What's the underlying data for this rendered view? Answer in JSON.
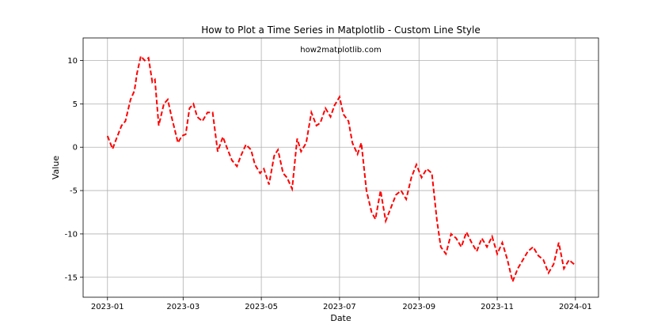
{
  "chart_data": {
    "type": "line",
    "title": "How to Plot a Time Series in Matplotlib - Custom Line Style",
    "xlabel": "Date",
    "ylabel": "Value",
    "annotation": "how2matplotlib.com",
    "x_ticks": [
      "2023-01",
      "2023-03",
      "2023-05",
      "2023-07",
      "2023-09",
      "2023-11",
      "2024-01"
    ],
    "y_ticks": [
      10,
      5,
      0,
      -5,
      -10,
      -15
    ],
    "y_tick_labels": [
      "10",
      "5",
      "0",
      "-5",
      "-10",
      "-15"
    ],
    "xlim": [
      "2022-12-13",
      "2024-01-19"
    ],
    "ylim": [
      -17.3,
      12.6
    ],
    "grid": true,
    "line_color": "#ff0000",
    "line_style": "dashed",
    "series": [
      {
        "x": [
          "2023-01-01",
          "2023-01-05",
          "2023-01-08",
          "2023-01-12",
          "2023-01-15",
          "2023-01-19",
          "2023-01-22",
          "2023-01-24",
          "2023-01-27",
          "2023-01-30",
          "2023-02-02",
          "2023-02-05",
          "2023-02-07",
          "2023-02-10",
          "2023-02-14",
          "2023-02-17",
          "2023-02-20",
          "2023-02-22",
          "2023-02-25",
          "2023-02-28",
          "2023-03-03",
          "2023-03-06",
          "2023-03-09",
          "2023-03-12",
          "2023-03-16",
          "2023-03-20",
          "2023-03-24",
          "2023-03-28",
          "2023-04-01",
          "2023-04-04",
          "2023-04-08",
          "2023-04-12",
          "2023-04-15",
          "2023-04-19",
          "2023-04-23",
          "2023-04-26",
          "2023-04-30",
          "2023-05-03",
          "2023-05-07",
          "2023-05-11",
          "2023-05-14",
          "2023-05-18",
          "2023-05-21",
          "2023-05-25",
          "2023-05-29",
          "2023-06-01",
          "2023-06-05",
          "2023-06-09",
          "2023-06-13",
          "2023-06-16",
          "2023-06-20",
          "2023-06-24",
          "2023-06-27",
          "2023-07-01",
          "2023-07-04",
          "2023-07-08",
          "2023-07-11",
          "2023-07-15",
          "2023-07-18",
          "2023-07-22",
          "2023-07-26",
          "2023-07-29",
          "2023-08-02",
          "2023-08-06",
          "2023-08-10",
          "2023-08-14",
          "2023-08-18",
          "2023-08-22",
          "2023-08-26",
          "2023-08-30",
          "2023-09-03",
          "2023-09-07",
          "2023-09-11",
          "2023-09-15",
          "2023-09-18",
          "2023-09-22",
          "2023-09-26",
          "2023-09-30",
          "2023-10-04",
          "2023-10-08",
          "2023-10-12",
          "2023-10-16",
          "2023-10-20",
          "2023-10-24",
          "2023-10-28",
          "2023-11-01",
          "2023-11-05",
          "2023-11-09",
          "2023-11-13",
          "2023-11-17",
          "2023-11-21",
          "2023-11-25",
          "2023-11-29",
          "2023-12-03",
          "2023-12-07",
          "2023-12-11",
          "2023-12-15",
          "2023-12-19",
          "2023-12-23",
          "2023-12-27",
          "2023-12-31"
        ],
        "y": [
          1.3,
          -0.2,
          1.0,
          2.5,
          3.0,
          5.5,
          6.5,
          8.5,
          10.5,
          10.0,
          10.3,
          7.5,
          7.8,
          2.5,
          5.0,
          5.5,
          3.5,
          2.3,
          0.5,
          1.3,
          1.5,
          4.5,
          5.0,
          3.5,
          3.0,
          4.0,
          4.0,
          -0.5,
          1.2,
          0.0,
          -1.5,
          -2.2,
          -1.0,
          0.3,
          -0.3,
          -2.0,
          -3.0,
          -2.5,
          -4.3,
          -1.0,
          -0.3,
          -3.0,
          -3.5,
          -4.8,
          1.0,
          -0.5,
          0.5,
          4.0,
          2.5,
          2.8,
          4.5,
          3.5,
          4.8,
          5.8,
          3.8,
          3.0,
          0.5,
          -0.8,
          0.5,
          -5.0,
          -7.5,
          -8.3,
          -5.0,
          -8.5,
          -7.0,
          -5.5,
          -5.0,
          -6.0,
          -3.5,
          -2.0,
          -3.5,
          -2.5,
          -3.0,
          -8.5,
          -11.5,
          -12.3,
          -10.0,
          -10.5,
          -11.5,
          -9.8,
          -11.0,
          -12.0,
          -10.5,
          -11.5,
          -10.3,
          -12.3,
          -11.0,
          -13.0,
          -15.5,
          -14.0,
          -13.0,
          -12.0,
          -11.5,
          -12.5,
          -13.0,
          -14.5,
          -13.5,
          -11.0,
          -14.0,
          -13.0,
          -13.5
        ]
      }
    ]
  }
}
